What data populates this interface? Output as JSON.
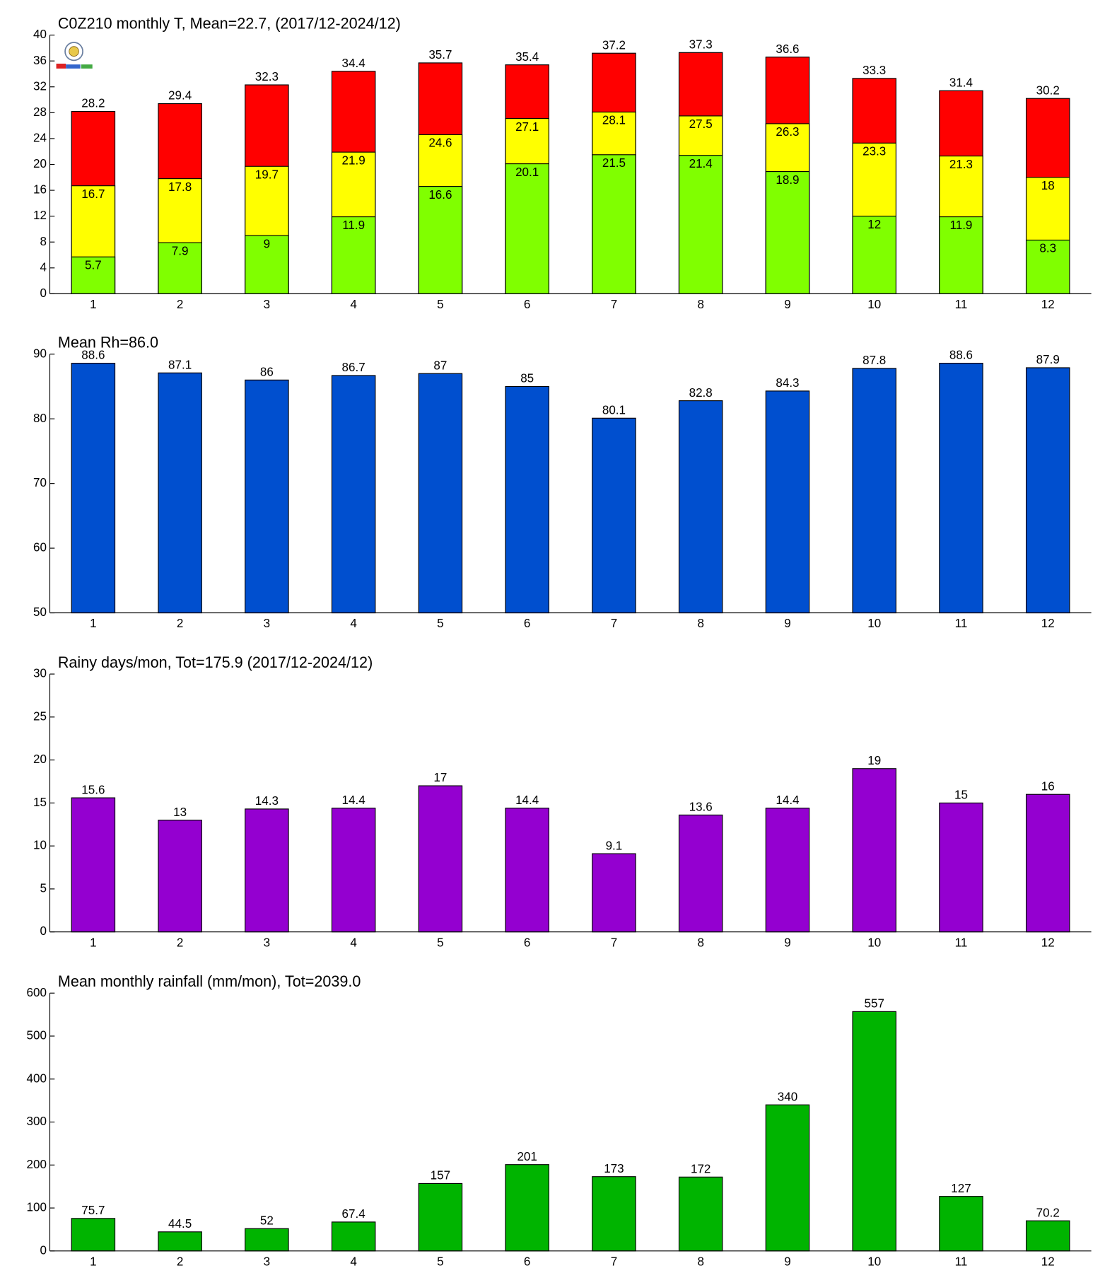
{
  "chart_data": [
    {
      "type": "bar",
      "title": "C0Z210 monthly T, Mean=22.7, (2017/12-2024/12)",
      "categories": [
        "1",
        "2",
        "3",
        "4",
        "5",
        "6",
        "7",
        "8",
        "9",
        "10",
        "11",
        "12"
      ],
      "series": [
        {
          "color": "#ff0000",
          "values": [
            28.2,
            29.4,
            32.3,
            34.4,
            35.7,
            35.4,
            37.2,
            37.3,
            36.6,
            33.3,
            31.4,
            30.2
          ]
        },
        {
          "color": "#ffff00",
          "values": [
            16.7,
            17.8,
            19.7,
            21.9,
            24.6,
            27.1,
            28.1,
            27.5,
            26.3,
            23.3,
            21.3,
            18
          ]
        },
        {
          "color": "#80ff00",
          "values": [
            5.7,
            7.9,
            9,
            11.9,
            16.6,
            20.1,
            21.5,
            21.4,
            18.9,
            12,
            11.9,
            8.3
          ]
        }
      ],
      "ylim": [
        0,
        40
      ],
      "yticks": [
        0,
        4,
        8,
        12,
        16,
        20,
        24,
        28,
        32,
        36,
        40
      ]
    },
    {
      "type": "bar",
      "title": "Mean Rh=86.0",
      "categories": [
        "1",
        "2",
        "3",
        "4",
        "5",
        "6",
        "7",
        "8",
        "9",
        "10",
        "11",
        "12"
      ],
      "series": [
        {
          "color": "#004fcf",
          "values": [
            88.6,
            87.1,
            86,
            86.7,
            87,
            85,
            80.1,
            82.8,
            84.3,
            87.8,
            88.6,
            87.9
          ]
        }
      ],
      "ylim": [
        50,
        90
      ],
      "yticks": [
        50,
        60,
        70,
        80,
        90
      ]
    },
    {
      "type": "bar",
      "title": "Rainy days/mon, Tot=175.9 (2017/12-2024/12)",
      "categories": [
        "1",
        "2",
        "3",
        "4",
        "5",
        "6",
        "7",
        "8",
        "9",
        "10",
        "11",
        "12"
      ],
      "series": [
        {
          "color": "#9400d0",
          "values": [
            15.6,
            13,
            14.3,
            14.4,
            17,
            14.4,
            9.1,
            13.6,
            14.4,
            19,
            15,
            16
          ]
        }
      ],
      "ylim": [
        0,
        30
      ],
      "yticks": [
        0,
        5,
        10,
        15,
        20,
        25,
        30
      ]
    },
    {
      "type": "bar",
      "title": "Mean monthly rainfall (mm/mon), Tot=2039.0",
      "categories": [
        "1",
        "2",
        "3",
        "4",
        "5",
        "6",
        "7",
        "8",
        "9",
        "10",
        "11",
        "12"
      ],
      "series": [
        {
          "color": "#00b400",
          "values": [
            75.7,
            44.5,
            52,
            67.4,
            157,
            201,
            173,
            172,
            340,
            557,
            127,
            70.2
          ]
        }
      ],
      "ylim": [
        0,
        600
      ],
      "yticks": [
        0,
        100,
        200,
        300,
        400,
        500,
        600
      ]
    }
  ]
}
